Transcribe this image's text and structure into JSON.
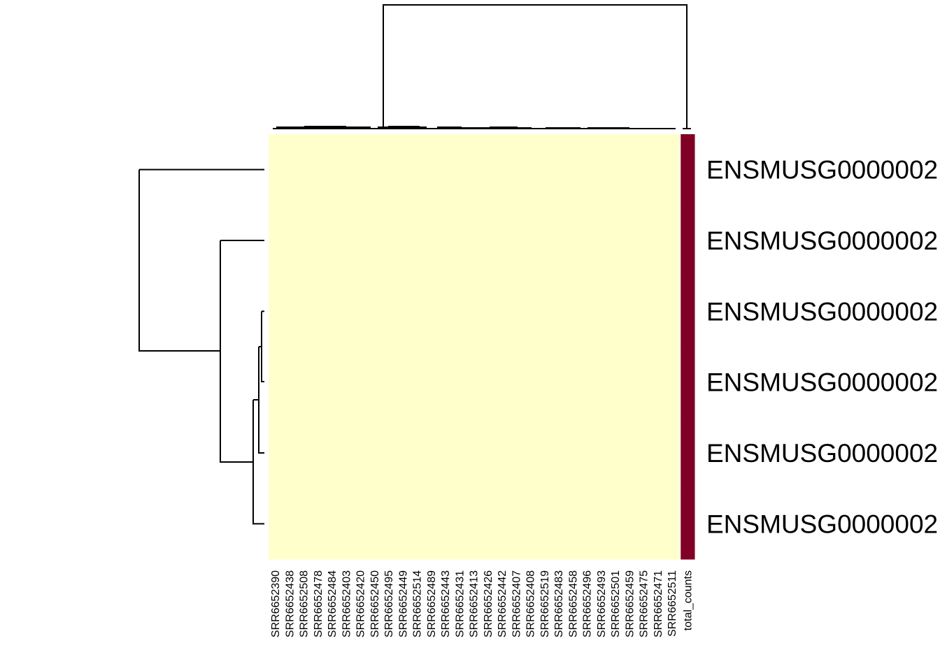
{
  "chart_data": {
    "type": "heatmap",
    "title": "",
    "xlabel": "",
    "ylabel": "",
    "columns": [
      "SRR6652390",
      "SRR6652438",
      "SRR6652508",
      "SRR6652478",
      "SRR6652484",
      "SRR6652403",
      "SRR6652420",
      "SRR6652450",
      "SRR6652495",
      "SRR6652449",
      "SRR6652514",
      "SRR6652489",
      "SRR6652443",
      "SRR6652431",
      "SRR6652413",
      "SRR6652426",
      "SRR6652442",
      "SRR6652407",
      "SRR6652408",
      "SRR6652519",
      "SRR6652483",
      "SRR6652458",
      "SRR6652496",
      "SRR6652493",
      "SRR6652501",
      "SRR6652459",
      "SRR6652475",
      "SRR6652471",
      "SRR6652511",
      "total_counts"
    ],
    "rows": [
      "ENSMUSG0000002",
      "ENSMUSG0000002",
      "ENSMUSG0000002",
      "ENSMUSG0000002",
      "ENSMUSG0000002",
      "ENSMUSG0000002"
    ],
    "values": [
      [
        0,
        0,
        0,
        0,
        0,
        0,
        0,
        0,
        0,
        0,
        0,
        0,
        0,
        0,
        0,
        0,
        0,
        0,
        0,
        0,
        0,
        0,
        0,
        0,
        0,
        0,
        0,
        0,
        0,
        1
      ],
      [
        0,
        0,
        0,
        0,
        0,
        0,
        0,
        0,
        0,
        0,
        0,
        0,
        0,
        0,
        0,
        0,
        0,
        0,
        0,
        0,
        0,
        0,
        0,
        0,
        0,
        0,
        0,
        0,
        0,
        1
      ],
      [
        0,
        0,
        0,
        0,
        0,
        0,
        0,
        0,
        0,
        0,
        0,
        0,
        0,
        0,
        0,
        0,
        0,
        0,
        0,
        0,
        0,
        0,
        0,
        0,
        0,
        0,
        0,
        0,
        0,
        1
      ],
      [
        0,
        0,
        0,
        0,
        0,
        0,
        0,
        0,
        0,
        0,
        0,
        0,
        0,
        0,
        0,
        0,
        0,
        0,
        0,
        0,
        0,
        0,
        0,
        0,
        0,
        0,
        0,
        0,
        0,
        1
      ],
      [
        0,
        0,
        0,
        0,
        0,
        0,
        0,
        0,
        0,
        0,
        0,
        0,
        0,
        0,
        0,
        0,
        0,
        0,
        0,
        0,
        0,
        0,
        0,
        0,
        0,
        0,
        0,
        0,
        0,
        1
      ],
      [
        0,
        0,
        0,
        0,
        0,
        0,
        0,
        0,
        0,
        0,
        0,
        0,
        0,
        0,
        0,
        0,
        0,
        0,
        0,
        0,
        0,
        0,
        0,
        0,
        0,
        0,
        0,
        0,
        0,
        1
      ]
    ],
    "color_scale": {
      "low": "#FFFFCC",
      "high": "#800026"
    },
    "row_dendrogram": true,
    "column_dendrogram": true,
    "grid": false
  }
}
